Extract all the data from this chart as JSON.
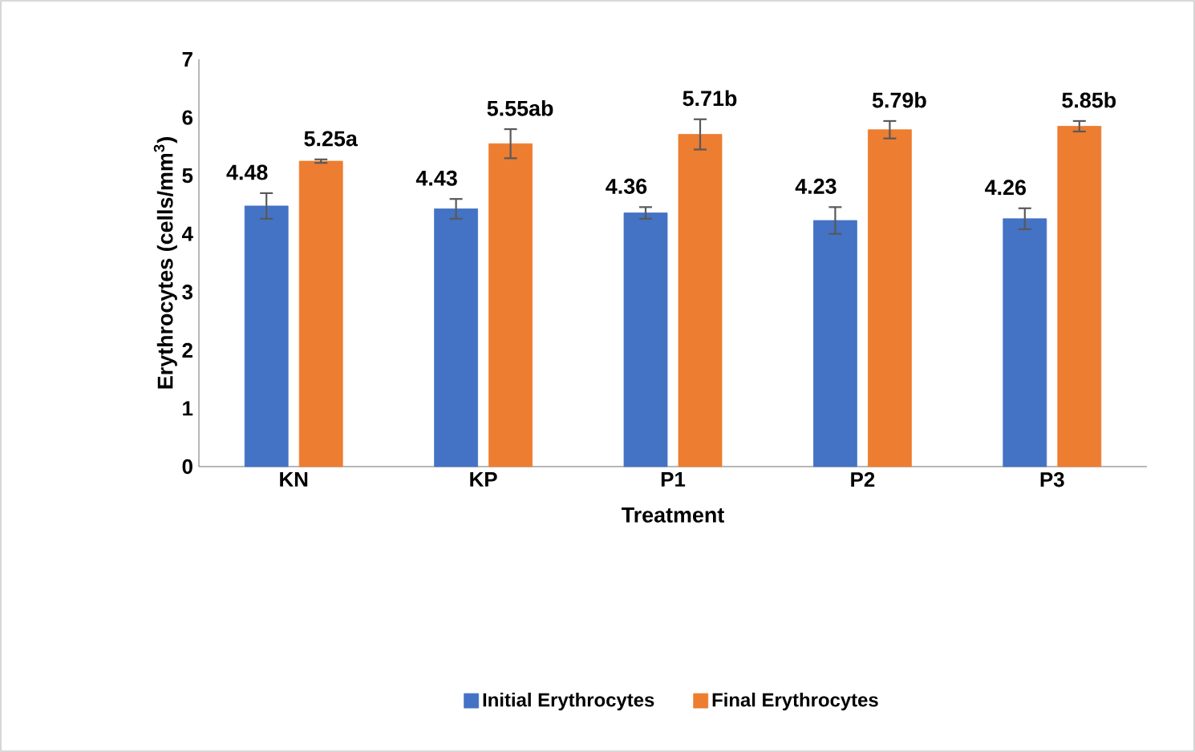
{
  "chart_data": {
    "type": "bar",
    "xlabel": "Treatment",
    "ylabel": "Erythrocytes (cells/mm$^{3}$)",
    "categories": [
      "KN",
      "KP",
      "P1",
      "P2",
      "P3"
    ],
    "series": [
      {
        "name": "Initial Erythrocytes",
        "color": "#4472c4",
        "values": [
          4.48,
          4.43,
          4.36,
          4.23,
          4.26
        ],
        "errors": [
          0.22,
          0.17,
          0.1,
          0.23,
          0.18
        ],
        "value_labels": [
          "4.48",
          "4.43",
          "4.36",
          "4.23",
          "4.26"
        ]
      },
      {
        "name": "Final Erythrocytes",
        "color": "#ed7d31",
        "values": [
          5.25,
          5.55,
          5.71,
          5.79,
          5.85
        ],
        "errors": [
          0.03,
          0.25,
          0.26,
          0.15,
          0.09
        ],
        "value_labels": [
          "5.25a",
          "5.55ab",
          "5.71b",
          "5.79b",
          "5.85b"
        ]
      }
    ],
    "ylim": [
      0,
      7
    ],
    "yticks": [
      0,
      1,
      2,
      3,
      4,
      5,
      6,
      7
    ],
    "grid": false,
    "legend": "bottom"
  }
}
